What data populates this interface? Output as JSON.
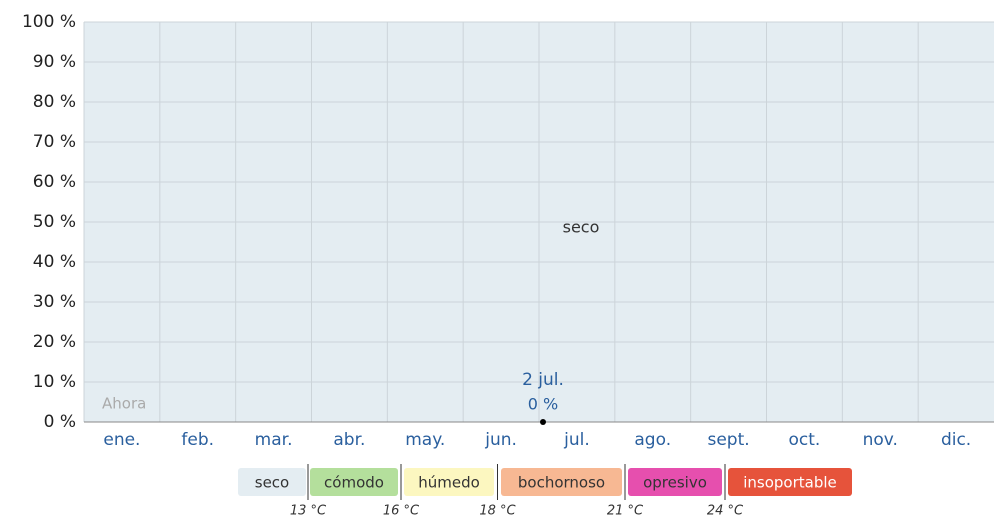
{
  "chart_data": {
    "type": "stacked_area",
    "categories": [
      "ene.",
      "feb.",
      "mar.",
      "abr.",
      "may.",
      "jun.",
      "jul.",
      "ago.",
      "sept.",
      "oct.",
      "nov.",
      "dic."
    ],
    "series": [
      {
        "name": "seco",
        "color": "#e4edf2",
        "values": [
          100,
          100,
          100,
          100,
          100,
          100,
          100,
          100,
          100,
          100,
          100,
          100
        ]
      },
      {
        "name": "cómodo",
        "color": "#b4df9c",
        "values": [
          0,
          0,
          0,
          0,
          0,
          0,
          0,
          0,
          0,
          0,
          0,
          0
        ]
      },
      {
        "name": "húmedo",
        "color": "#fcf7c0",
        "values": [
          0,
          0,
          0,
          0,
          0,
          0,
          0,
          0,
          0,
          0,
          0,
          0
        ]
      },
      {
        "name": "bochornoso",
        "color": "#f7b893",
        "values": [
          0,
          0,
          0,
          0,
          0,
          0,
          0,
          0,
          0,
          0,
          0,
          0
        ]
      },
      {
        "name": "opresivo",
        "color": "#e64fae",
        "values": [
          0,
          0,
          0,
          0,
          0,
          0,
          0,
          0,
          0,
          0,
          0,
          0
        ]
      },
      {
        "name": "insoportable",
        "color": "#e6533b",
        "values": [
          0,
          0,
          0,
          0,
          0,
          0,
          0,
          0,
          0,
          0,
          0,
          0
        ]
      }
    ],
    "thresholds": [
      "13 °C",
      "16 °C",
      "18 °C",
      "21 °C",
      "24 °C"
    ],
    "annotation": {
      "label": "2 jul.",
      "value": 0,
      "value_label": "0 %"
    },
    "now_label": "Ahora",
    "ylim": [
      0,
      100
    ],
    "yticks": [
      {
        "value": 0,
        "label": "0 %"
      },
      {
        "value": 10,
        "label": "10 %"
      },
      {
        "value": 20,
        "label": "20 %"
      },
      {
        "value": 30,
        "label": "30 %"
      },
      {
        "value": 40,
        "label": "40 %"
      },
      {
        "value": 50,
        "label": "50 %"
      },
      {
        "value": 60,
        "label": "60 %"
      },
      {
        "value": 70,
        "label": "70 %"
      },
      {
        "value": 80,
        "label": "80 %"
      },
      {
        "value": 90,
        "label": "90 %"
      },
      {
        "value": 100,
        "label": "100 %"
      }
    ],
    "grid": true
  }
}
